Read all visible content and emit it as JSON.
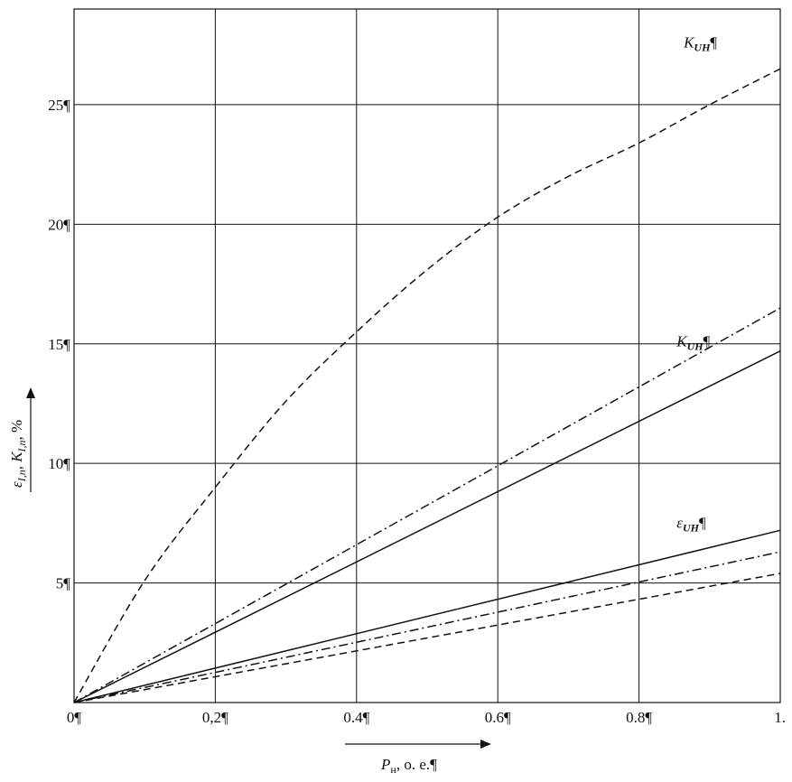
{
  "chart_data": {
    "type": "line",
    "xlim": [
      0,
      1.0
    ],
    "ylim": [
      0,
      29
    ],
    "grid": true,
    "x_ticks": [
      {
        "value": 0,
        "label": "0¶"
      },
      {
        "value": 0.2,
        "label": "0,2¶"
      },
      {
        "value": 0.4,
        "label": "0.4¶"
      },
      {
        "value": 0.6,
        "label": "0.6¶"
      },
      {
        "value": 0.8,
        "label": "0.8¶"
      },
      {
        "value": 1.0,
        "label": "1."
      }
    ],
    "y_ticks": [
      {
        "value": 5,
        "label": "5¶"
      },
      {
        "value": 10,
        "label": "10¶"
      },
      {
        "value": 15,
        "label": "15¶"
      },
      {
        "value": 20,
        "label": "20¶"
      },
      {
        "value": 25,
        "label": "25¶"
      }
    ],
    "xlabel": "P",
    "xlabel_sub": "н",
    "xlabel_rest": ", о. е.¶",
    "ylabel": "ε",
    "ylabel_sub": "I,n",
    "ylabel_mid": ", K",
    "ylabel_sub2": "I,n",
    "ylabel_rest": ", %",
    "series": [
      {
        "style": "dashed",
        "x": [
          0,
          0.1,
          0.2,
          0.3,
          0.4,
          0.5,
          0.6,
          0.7,
          0.8,
          0.9,
          1.0
        ],
        "y": [
          0,
          5.1,
          9.0,
          12.6,
          15.5,
          18.1,
          20.3,
          22.0,
          23.4,
          25.0,
          26.5
        ]
      },
      {
        "style": "dashdot",
        "x": [
          0,
          1.0
        ],
        "y": [
          0,
          16.5
        ]
      },
      {
        "style": "solid",
        "x": [
          0,
          1.0
        ],
        "y": [
          0,
          14.7
        ]
      },
      {
        "style": "solid",
        "x": [
          0,
          1.0
        ],
        "y": [
          0,
          7.2
        ]
      },
      {
        "style": "dashdot",
        "x": [
          0,
          1.0
        ],
        "y": [
          0,
          6.3
        ]
      },
      {
        "style": "dashed",
        "x": [
          0,
          1.0
        ],
        "y": [
          0,
          5.4
        ]
      }
    ],
    "annotations": [
      {
        "main": "K",
        "sub": "UH",
        "tail": "¶",
        "x": 0.94,
        "y": 27.4
      },
      {
        "main": "K",
        "sub": "UH",
        "tail": "¶",
        "x": 0.93,
        "y": 14.9
      },
      {
        "main": "ε",
        "sub": "UH",
        "tail": "¶",
        "x": 0.93,
        "y": 7.3
      }
    ]
  }
}
